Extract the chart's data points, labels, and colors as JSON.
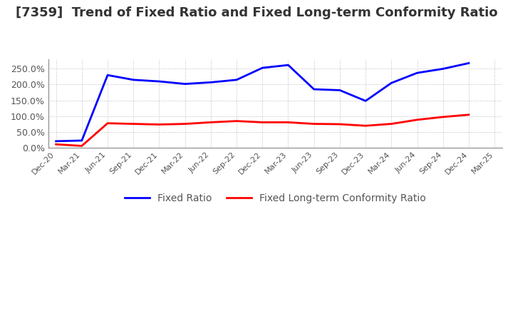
{
  "title": "[7359]  Trend of Fixed Ratio and Fixed Long-term Conformity Ratio",
  "x_labels": [
    "Dec-20",
    "Mar-21",
    "Jun-21",
    "Sep-21",
    "Dec-21",
    "Mar-22",
    "Jun-22",
    "Sep-22",
    "Dec-22",
    "Mar-23",
    "Jun-23",
    "Sep-23",
    "Dec-23",
    "Mar-24",
    "Jun-24",
    "Sep-24",
    "Dec-24",
    "Mar-25"
  ],
  "fixed_ratio": [
    20.0,
    22.0,
    230.0,
    215.0,
    210.0,
    202.0,
    207.0,
    215.0,
    253.0,
    262.0,
    185.0,
    182.0,
    148.0,
    205.0,
    237.0,
    250.0,
    268.0,
    null
  ],
  "fixed_longterm_ratio": [
    10.0,
    5.0,
    77.0,
    75.0,
    73.0,
    75.0,
    80.0,
    84.0,
    80.0,
    80.0,
    75.0,
    74.0,
    69.0,
    75.0,
    88.0,
    97.0,
    104.0,
    null
  ],
  "ylim": [
    0,
    280
  ],
  "yticks": [
    0.0,
    50.0,
    100.0,
    150.0,
    200.0,
    250.0
  ],
  "fixed_ratio_color": "#0000FF",
  "fixed_longterm_ratio_color": "#FF0000",
  "background_color": "#FFFFFF",
  "plot_background_color": "#FFFFFF",
  "grid_color": "#BBBBBB",
  "title_fontsize": 13,
  "title_color": "#333333",
  "tick_label_color": "#555555",
  "legend_labels": [
    "Fixed Ratio",
    "Fixed Long-term Conformity Ratio"
  ]
}
